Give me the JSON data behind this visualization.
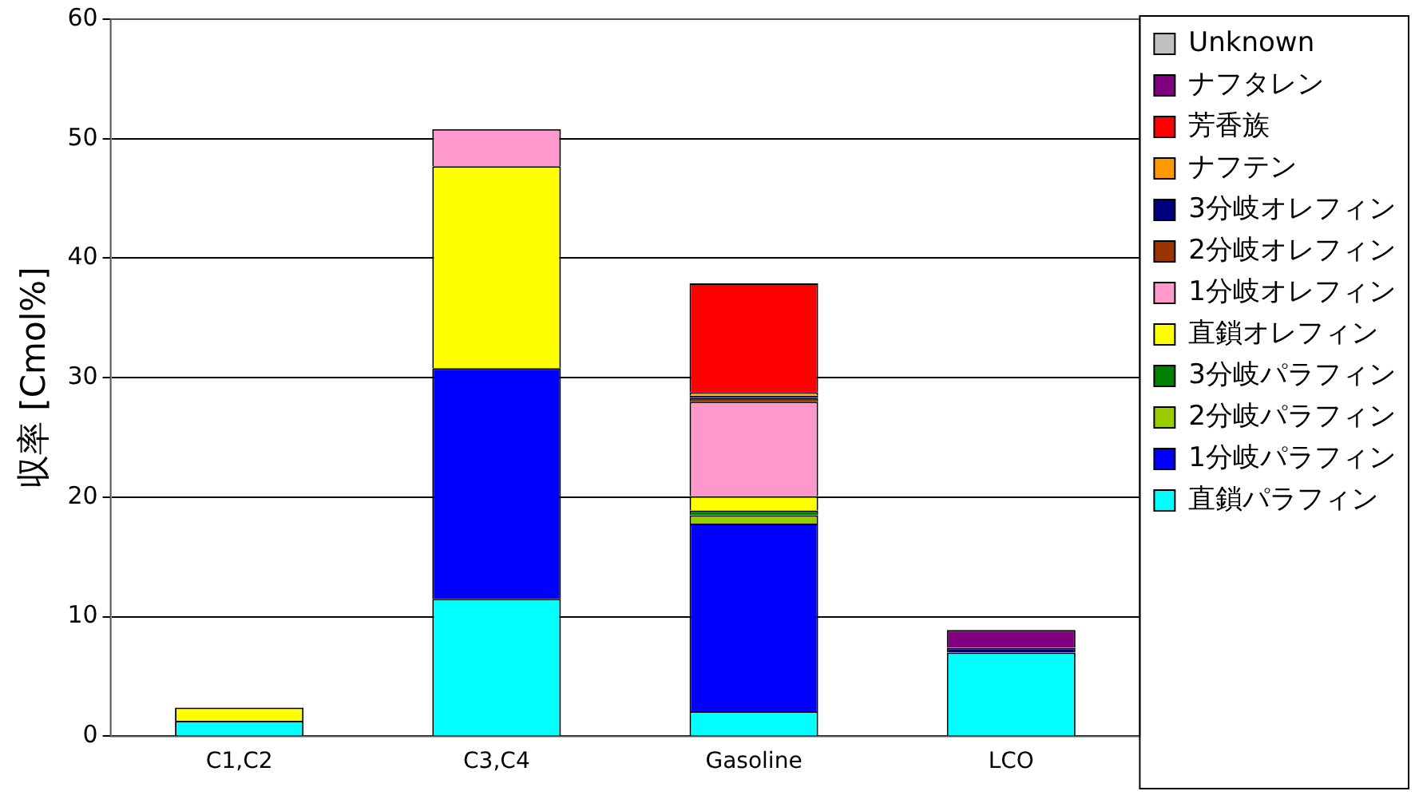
{
  "chart_data": {
    "type": "bar",
    "stacked": true,
    "ylabel": "収率 [Cmol%]",
    "categories": [
      "C1,C2",
      "C3,C4",
      "Gasoline",
      "LCO"
    ],
    "ylim": [
      0,
      60
    ],
    "yticks": [
      0,
      10,
      20,
      30,
      40,
      50,
      60
    ],
    "grid": "y",
    "legend": "right",
    "series": [
      {
        "name": "直鎖パラフィン",
        "color": "#00ffff",
        "values": [
          1.3,
          11.5,
          2.1,
          7.0
        ]
      },
      {
        "name": "1分岐パラフィン",
        "color": "#0000ff",
        "values": [
          0,
          19.3,
          15.7,
          0
        ]
      },
      {
        "name": "2分岐パラフィン",
        "color": "#99cc00",
        "values": [
          0,
          0,
          0.7,
          0
        ]
      },
      {
        "name": "3分岐パラフィン",
        "color": "#008000",
        "values": [
          0,
          0,
          0.4,
          0
        ]
      },
      {
        "name": "直鎖オレフィン",
        "color": "#ffff00",
        "values": [
          1.1,
          16.9,
          1.2,
          0
        ]
      },
      {
        "name": "1分岐オレフィン",
        "color": "#ff99cc",
        "values": [
          0,
          3.1,
          7.9,
          0
        ]
      },
      {
        "name": "2分岐オレフィン",
        "color": "#993300",
        "values": [
          0,
          0,
          0.3,
          0
        ]
      },
      {
        "name": "3分岐オレフィン",
        "color": "#000080",
        "values": [
          0,
          0,
          0.2,
          0.4
        ]
      },
      {
        "name": "ナフテン",
        "color": "#ff9900",
        "values": [
          0,
          0,
          0.3,
          0
        ]
      },
      {
        "name": "芳香族",
        "color": "#ff0000",
        "values": [
          0,
          0,
          9.1,
          0
        ]
      },
      {
        "name": "ナフタレン",
        "color": "#800080",
        "values": [
          0,
          0,
          0,
          1.5
        ]
      },
      {
        "name": "Unknown",
        "color": "#c0c0c0",
        "values": [
          0,
          0,
          0,
          0
        ]
      }
    ]
  }
}
